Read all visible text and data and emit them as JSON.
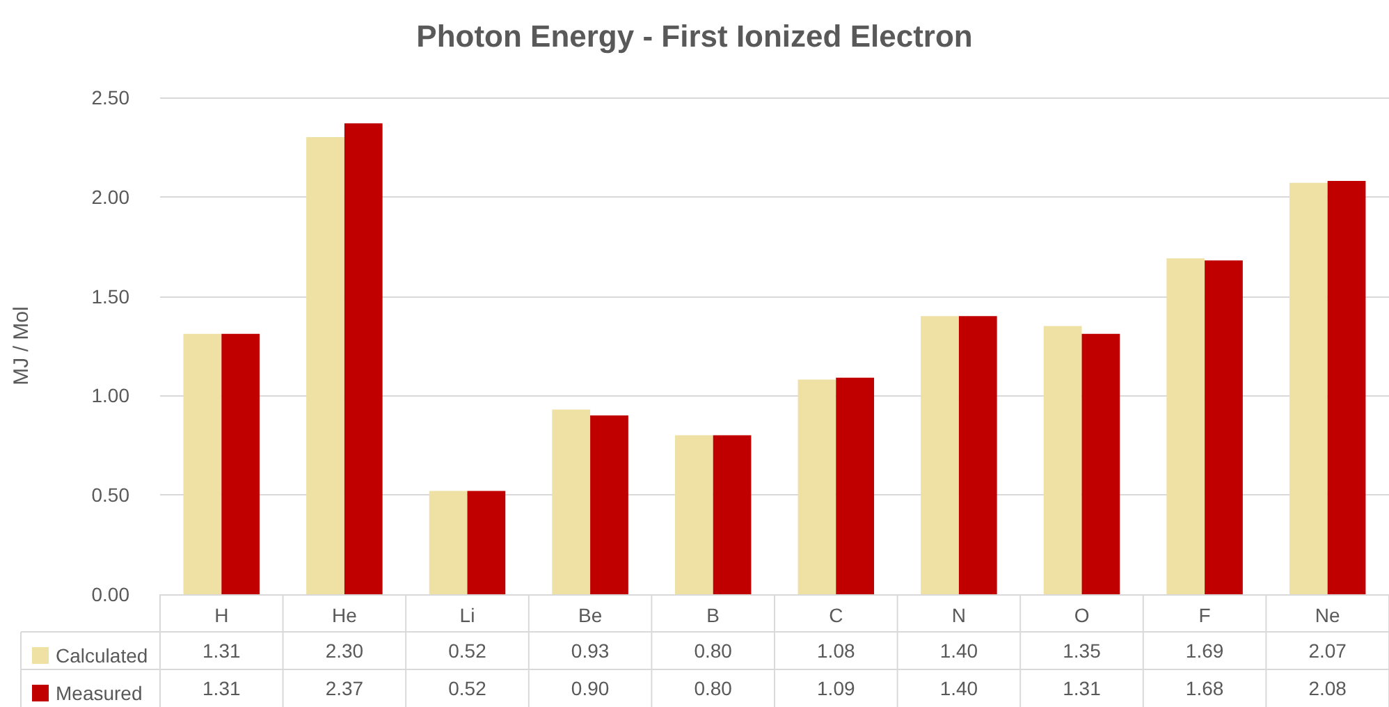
{
  "chart_data": {
    "type": "bar",
    "title": "Photon Energy - First Ionized Electron",
    "ylabel": "MJ / Mol",
    "categories": [
      "H",
      "He",
      "Li",
      "Be",
      "B",
      "C",
      "N",
      "O",
      "F",
      "Ne"
    ],
    "series": [
      {
        "name": "Calculated",
        "color": "#efe1a4",
        "values": [
          1.31,
          2.3,
          0.52,
          0.93,
          0.8,
          1.08,
          1.4,
          1.35,
          1.69,
          2.07
        ],
        "value_labels": [
          "1.31",
          "2.30",
          "0.52",
          "0.93",
          "0.80",
          "1.08",
          "1.40",
          "1.35",
          "1.69",
          "2.07"
        ]
      },
      {
        "name": "Measured",
        "color": "#c00000",
        "values": [
          1.31,
          2.37,
          0.52,
          0.9,
          0.8,
          1.09,
          1.4,
          1.31,
          1.68,
          2.08
        ],
        "value_labels": [
          "1.31",
          "2.37",
          "0.52",
          "0.90",
          "0.80",
          "1.09",
          "1.40",
          "1.31",
          "1.68",
          "2.08"
        ]
      }
    ],
    "ylim": [
      0,
      2.5
    ],
    "yticks": [
      {
        "value": 0,
        "label": "0.00"
      },
      {
        "value": 0.5,
        "label": "0.50"
      },
      {
        "value": 1,
        "label": "1.00"
      },
      {
        "value": 1.5,
        "label": "1.50"
      },
      {
        "value": 2,
        "label": "2.00"
      },
      {
        "value": 2.5,
        "label": "2.50"
      }
    ],
    "grid": "y",
    "legend": "bottom"
  }
}
